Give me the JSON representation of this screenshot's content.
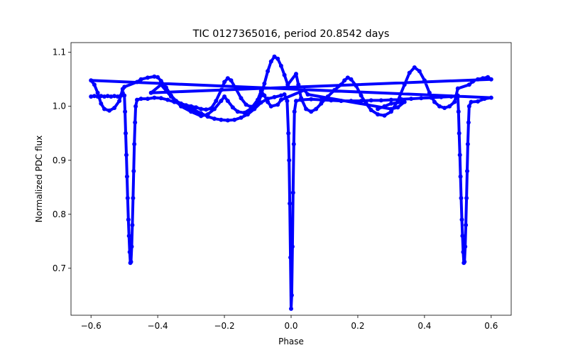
{
  "chart_data": {
    "type": "scatter",
    "title": "TIC 0127365016, period 20.8542 days",
    "xlabel": "Phase",
    "ylabel": "Normalized PDC flux",
    "xlim": [
      -0.66,
      0.66
    ],
    "ylim": [
      0.613,
      1.118
    ],
    "xticks": [
      -0.6,
      -0.4,
      -0.2,
      0.0,
      0.2,
      0.4,
      0.6
    ],
    "xtick_labels": [
      "−0.6",
      "−0.4",
      "−0.2",
      "0.0",
      "0.2",
      "0.4",
      "0.6"
    ],
    "yticks": [
      0.7,
      0.8,
      0.9,
      1.0,
      1.1
    ],
    "ytick_labels": [
      "0.7",
      "0.8",
      "0.9",
      "1.0",
      "1.1"
    ],
    "grid": false,
    "marker_color": "#0000ff",
    "series": [
      {
        "points": [
          [
            -0.6,
            1.018
          ],
          [
            -0.59,
            1.019
          ],
          [
            -0.58,
            1.018
          ],
          [
            -0.57,
            1.019
          ],
          [
            -0.56,
            1.018
          ],
          [
            -0.55,
            1.019
          ],
          [
            -0.54,
            1.018
          ],
          [
            -0.53,
            1.019
          ],
          [
            -0.52,
            1.018
          ],
          [
            -0.51,
            1.02
          ],
          [
            -0.505,
            1.025
          ],
          [
            -0.5,
            1.02
          ],
          [
            -0.498,
            0.99
          ],
          [
            -0.496,
            0.95
          ],
          [
            -0.494,
            0.91
          ],
          [
            -0.492,
            0.87
          ],
          [
            -0.49,
            0.83
          ],
          [
            -0.488,
            0.79
          ],
          [
            -0.486,
            0.76
          ],
          [
            -0.484,
            0.73
          ],
          [
            -0.482,
            0.71
          ],
          [
            -0.48,
            0.712
          ],
          [
            -0.478,
            0.74
          ],
          [
            -0.476,
            0.78
          ],
          [
            -0.474,
            0.83
          ],
          [
            -0.472,
            0.88
          ],
          [
            -0.47,
            0.93
          ],
          [
            -0.468,
            0.97
          ],
          [
            -0.466,
            1.0
          ],
          [
            -0.462,
            1.012
          ],
          [
            -0.45,
            1.014
          ],
          [
            -0.43,
            1.014
          ],
          [
            -0.41,
            1.016
          ],
          [
            -0.39,
            1.015
          ],
          [
            -0.37,
            1.012
          ],
          [
            -0.35,
            1.008
          ],
          [
            -0.33,
            1.004
          ],
          [
            -0.31,
            0.999
          ],
          [
            -0.29,
            0.993
          ],
          [
            -0.27,
            0.987
          ],
          [
            -0.25,
            0.981
          ],
          [
            -0.23,
            0.977
          ],
          [
            -0.21,
            0.975
          ],
          [
            -0.19,
            0.974
          ],
          [
            -0.17,
            0.975
          ],
          [
            -0.15,
            0.979
          ],
          [
            -0.13,
            0.985
          ],
          [
            -0.11,
            0.995
          ],
          [
            -0.09,
            1.007
          ],
          [
            -0.07,
            1.014
          ],
          [
            -0.05,
            1.017
          ],
          [
            -0.03,
            1.02
          ],
          [
            -0.02,
            1.022
          ],
          [
            -0.012,
            1.01
          ],
          [
            -0.008,
            0.95
          ],
          [
            -0.006,
            0.9
          ],
          [
            -0.004,
            0.82
          ],
          [
            -0.002,
            0.72
          ],
          [
            0.0,
            0.625
          ],
          [
            0.002,
            0.65
          ],
          [
            0.004,
            0.74
          ],
          [
            0.006,
            0.84
          ],
          [
            0.008,
            0.93
          ],
          [
            0.01,
            0.99
          ],
          [
            0.015,
            1.01
          ],
          [
            0.03,
            1.012
          ],
          [
            0.06,
            1.013
          ],
          [
            0.09,
            1.012
          ],
          [
            0.12,
            1.011
          ],
          [
            0.15,
            1.01
          ],
          [
            0.18,
            1.01
          ],
          [
            0.21,
            1.01
          ],
          [
            0.24,
            1.011
          ],
          [
            0.27,
            1.011
          ],
          [
            0.3,
            1.012
          ],
          [
            0.33,
            1.013
          ],
          [
            0.36,
            1.014
          ],
          [
            0.39,
            1.015
          ],
          [
            0.42,
            1.016
          ],
          [
            0.45,
            1.017
          ],
          [
            0.48,
            1.018
          ],
          [
            0.495,
            1.019
          ],
          [
            0.5,
            1.02
          ],
          [
            0.502,
            0.99
          ],
          [
            0.504,
            0.95
          ],
          [
            0.506,
            0.91
          ],
          [
            0.508,
            0.87
          ],
          [
            0.51,
            0.83
          ],
          [
            0.512,
            0.79
          ],
          [
            0.514,
            0.76
          ],
          [
            0.516,
            0.73
          ],
          [
            0.518,
            0.71
          ],
          [
            0.52,
            0.712
          ],
          [
            0.522,
            0.74
          ],
          [
            0.524,
            0.78
          ],
          [
            0.526,
            0.83
          ],
          [
            0.528,
            0.88
          ],
          [
            0.53,
            0.93
          ],
          [
            0.532,
            0.97
          ],
          [
            0.534,
            1.0
          ],
          [
            0.54,
            1.008
          ],
          [
            0.56,
            1.009
          ],
          [
            0.58,
            1.014
          ],
          [
            0.6,
            1.016
          ],
          [
            -0.6,
            1.048
          ],
          [
            -0.59,
            1.04
          ],
          [
            -0.58,
            1.025
          ],
          [
            -0.57,
            1.005
          ],
          [
            -0.56,
            0.995
          ],
          [
            -0.545,
            0.992
          ],
          [
            -0.53,
            0.997
          ],
          [
            -0.515,
            1.01
          ],
          [
            -0.505,
            1.032
          ],
          [
            -0.5,
            1.036
          ],
          [
            -0.462,
            1.045
          ],
          [
            -0.45,
            1.05
          ],
          [
            -0.43,
            1.053
          ],
          [
            -0.41,
            1.055
          ],
          [
            -0.4,
            1.054
          ],
          [
            -0.39,
            1.047
          ],
          [
            -0.375,
            1.035
          ],
          [
            -0.36,
            1.02
          ],
          [
            -0.345,
            1.01
          ],
          [
            -0.33,
            1.005
          ],
          [
            -0.315,
            1.002
          ],
          [
            -0.3,
            1.0
          ],
          [
            -0.285,
            0.998
          ],
          [
            -0.27,
            0.995
          ],
          [
            -0.255,
            0.994
          ],
          [
            -0.24,
            0.996
          ],
          [
            -0.225,
            1.01
          ],
          [
            -0.21,
            1.03
          ],
          [
            -0.2,
            1.045
          ],
          [
            -0.19,
            1.052
          ],
          [
            -0.18,
            1.048
          ],
          [
            -0.165,
            1.032
          ],
          [
            -0.15,
            1.015
          ],
          [
            -0.135,
            1.003
          ],
          [
            -0.12,
            0.999
          ],
          [
            -0.11,
            0.999
          ],
          [
            -0.1,
            1.003
          ],
          [
            -0.09,
            1.02
          ],
          [
            -0.08,
            1.042
          ],
          [
            -0.07,
            1.065
          ],
          [
            -0.06,
            1.083
          ],
          [
            -0.05,
            1.092
          ],
          [
            -0.04,
            1.088
          ],
          [
            -0.03,
            1.075
          ],
          [
            -0.02,
            1.058
          ],
          [
            -0.01,
            1.04
          ],
          [
            0.015,
            1.06
          ],
          [
            0.022,
            1.04
          ],
          [
            0.03,
            1.015
          ],
          [
            0.045,
            0.995
          ],
          [
            0.06,
            0.99
          ],
          [
            0.075,
            0.995
          ],
          [
            0.09,
            1.005
          ],
          [
            0.11,
            1.018
          ],
          [
            0.13,
            1.03
          ],
          [
            0.15,
            1.04
          ],
          [
            0.16,
            1.048
          ],
          [
            0.17,
            1.053
          ],
          [
            0.18,
            1.05
          ],
          [
            0.195,
            1.038
          ],
          [
            0.21,
            1.02
          ],
          [
            0.225,
            1.005
          ],
          [
            0.24,
            0.993
          ],
          [
            0.26,
            0.985
          ],
          [
            0.28,
            0.983
          ],
          [
            0.3,
            0.99
          ],
          [
            0.32,
            1.01
          ],
          [
            0.34,
            1.04
          ],
          [
            0.355,
            1.062
          ],
          [
            0.37,
            1.072
          ],
          [
            0.385,
            1.065
          ],
          [
            0.4,
            1.048
          ],
          [
            0.415,
            1.025
          ],
          [
            0.43,
            1.008
          ],
          [
            0.445,
            1.0
          ],
          [
            0.46,
            0.997
          ],
          [
            0.475,
            1.0
          ],
          [
            0.49,
            1.008
          ],
          [
            0.5,
            1.033
          ],
          [
            0.534,
            1.04
          ],
          [
            0.545,
            1.046
          ],
          [
            0.56,
            1.05
          ],
          [
            0.575,
            1.052
          ],
          [
            0.59,
            1.054
          ],
          [
            0.6,
            1.05
          ],
          [
            -0.42,
            1.025
          ],
          [
            -0.39,
            1.04
          ],
          [
            -0.36,
            1.018
          ],
          [
            -0.33,
            1.0
          ],
          [
            -0.3,
            0.99
          ],
          [
            -0.27,
            0.982
          ],
          [
            -0.25,
            0.985
          ],
          [
            -0.23,
            0.995
          ],
          [
            -0.21,
            1.01
          ],
          [
            -0.2,
            1.018
          ],
          [
            -0.19,
            1.01
          ],
          [
            -0.175,
            0.998
          ],
          [
            -0.16,
            0.99
          ],
          [
            -0.14,
            0.988
          ],
          [
            -0.12,
            0.996
          ],
          [
            -0.1,
            1.012
          ],
          [
            -0.09,
            1.028
          ],
          [
            -0.08,
            1.02
          ],
          [
            -0.07,
            1.008
          ],
          [
            -0.06,
            1.0
          ],
          [
            -0.04,
            1.003
          ],
          [
            -0.03,
            1.012
          ],
          [
            0.04,
            1.03
          ],
          [
            0.05,
            1.022
          ],
          [
            0.3,
            0.995
          ],
          [
            0.32,
            0.998
          ],
          [
            0.34,
            1.008
          ],
          [
            0.3,
            1.005
          ],
          [
            0.28,
            1.0
          ],
          [
            0.26,
            0.995
          ]
        ]
      }
    ]
  }
}
